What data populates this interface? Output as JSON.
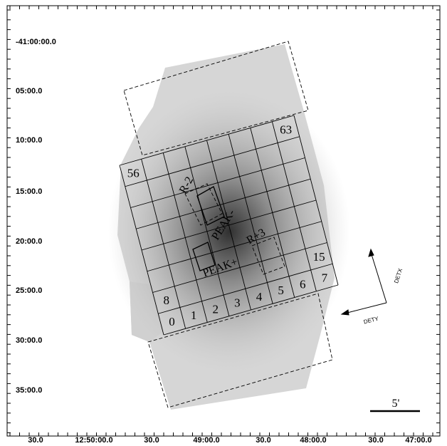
{
  "axes": {
    "y_labels": [
      "-41:00:00.0",
      "05:00.0",
      "10:00.0",
      "15:00.0",
      "20:00.0",
      "25:00.0",
      "30:00.0",
      "35:00.0"
    ],
    "x_labels": [
      "30.0",
      "12:50:00.0",
      "30.0",
      "49:00.0",
      "30.0",
      "48:00.0",
      "30.0",
      "47:00.0"
    ]
  },
  "grid_labels": [
    "0",
    "1",
    "2",
    "3",
    "4",
    "5",
    "6",
    "7",
    "8",
    "15",
    "56",
    "63"
  ],
  "regions": [
    "R-2",
    "PEAK-",
    "R+3",
    "PEAK+"
  ],
  "compass": [
    "DETX",
    "DETY"
  ],
  "scale_bar": "5'"
}
